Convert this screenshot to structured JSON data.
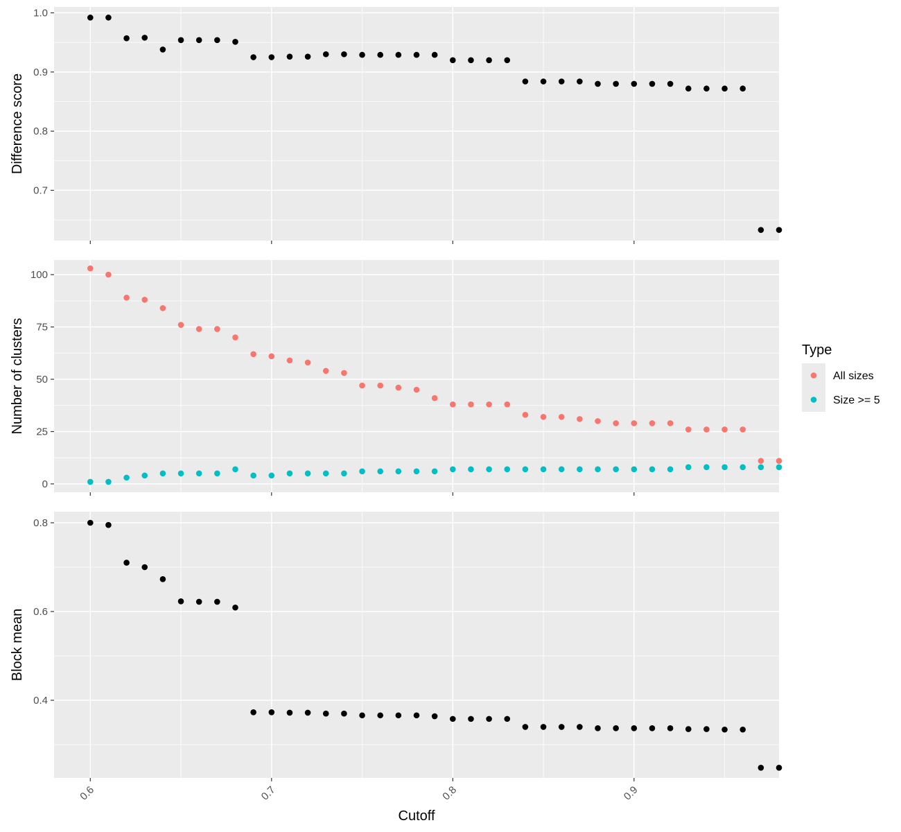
{
  "chart_data": {
    "type": "scatter",
    "x_axis": {
      "title": "Cutoff",
      "range": [
        0.58,
        0.98
      ],
      "ticks": [
        0.6,
        0.7,
        0.8,
        0.9
      ],
      "tick_labels": [
        "0.6",
        "0.7",
        "0.8",
        "0.9"
      ],
      "tick_label_rotation": "45-degree"
    },
    "x": [
      0.6,
      0.61,
      0.62,
      0.63,
      0.64,
      0.65,
      0.66,
      0.67,
      0.68,
      0.69,
      0.7,
      0.71,
      0.72,
      0.73,
      0.74,
      0.75,
      0.76,
      0.77,
      0.78,
      0.79,
      0.8,
      0.81,
      0.82,
      0.83,
      0.84,
      0.85,
      0.86,
      0.87,
      0.88,
      0.89,
      0.9,
      0.91,
      0.92,
      0.93,
      0.94,
      0.95,
      0.96,
      0.97,
      0.98
    ],
    "panels": [
      {
        "ylabel": "Difference score",
        "ylim": [
          0.615,
          1.01
        ],
        "y_ticks": [
          0.7,
          0.8,
          0.9,
          1.0
        ],
        "y_tick_labels": [
          "0.7",
          "0.8",
          "0.9",
          "1.0"
        ],
        "y_minor": [
          0.65,
          0.75,
          0.85,
          0.95
        ],
        "series": [
          {
            "color": "#000000",
            "values": [
              0.992,
              0.992,
              0.957,
              0.958,
              0.938,
              0.954,
              0.954,
              0.954,
              0.951,
              0.925,
              0.925,
              0.926,
              0.926,
              0.93,
              0.93,
              0.929,
              0.929,
              0.929,
              0.929,
              0.929,
              0.92,
              0.92,
              0.92,
              0.92,
              0.884,
              0.884,
              0.884,
              0.884,
              0.88,
              0.88,
              0.88,
              0.88,
              0.88,
              0.872,
              0.872,
              0.872,
              0.872,
              0.633,
              0.633
            ]
          }
        ]
      },
      {
        "ylabel": "Number of clusters",
        "ylim": [
          -4,
          107
        ],
        "y_ticks": [
          0,
          25,
          50,
          75,
          100
        ],
        "y_tick_labels": [
          "0",
          "25",
          "50",
          "75",
          "100"
        ],
        "y_minor": [
          12.5,
          37.5,
          62.5,
          87.5
        ],
        "series": [
          {
            "name": "All sizes",
            "color": "#f8766d",
            "values": [
              103,
              100,
              89,
              88,
              84,
              76,
              74,
              74,
              70,
              62,
              61,
              59,
              58,
              54,
              53,
              47,
              47,
              46,
              45,
              41,
              38,
              38,
              38,
              38,
              33,
              32,
              32,
              31,
              30,
              29,
              29,
              29,
              29,
              26,
              26,
              26,
              26,
              11,
              11
            ]
          },
          {
            "name": "Size >= 5",
            "color": "#00bfc4",
            "values": [
              1,
              1,
              3,
              4,
              5,
              5,
              5,
              5,
              7,
              4,
              4,
              5,
              5,
              5,
              5,
              6,
              6,
              6,
              6,
              6,
              7,
              7,
              7,
              7,
              7,
              7,
              7,
              7,
              7,
              7,
              7,
              7,
              7,
              8,
              8,
              8,
              8,
              8,
              8
            ]
          }
        ]
      },
      {
        "ylabel": "Block mean",
        "ylim": [
          0.225,
          0.825
        ],
        "y_ticks": [
          0.4,
          0.6,
          0.8
        ],
        "y_tick_labels": [
          "0.4",
          "0.6",
          "0.8"
        ],
        "y_minor": [
          0.3,
          0.5,
          0.7
        ],
        "series": [
          {
            "color": "#000000",
            "values": [
              0.8,
              0.795,
              0.71,
              0.7,
              0.673,
              0.623,
              0.622,
              0.622,
              0.609,
              0.373,
              0.373,
              0.372,
              0.372,
              0.37,
              0.37,
              0.366,
              0.366,
              0.366,
              0.366,
              0.364,
              0.358,
              0.358,
              0.358,
              0.358,
              0.34,
              0.34,
              0.34,
              0.34,
              0.337,
              0.337,
              0.337,
              0.337,
              0.337,
              0.335,
              0.335,
              0.334,
              0.334,
              0.248,
              0.248
            ]
          }
        ]
      }
    ],
    "legend": {
      "title": "Type",
      "position": "right",
      "entries": [
        {
          "label": "All sizes",
          "color": "#f8766d"
        },
        {
          "label": "Size >= 5",
          "color": "#00bfc4"
        }
      ]
    },
    "grid": true,
    "theme": "ggplot2-grey"
  }
}
